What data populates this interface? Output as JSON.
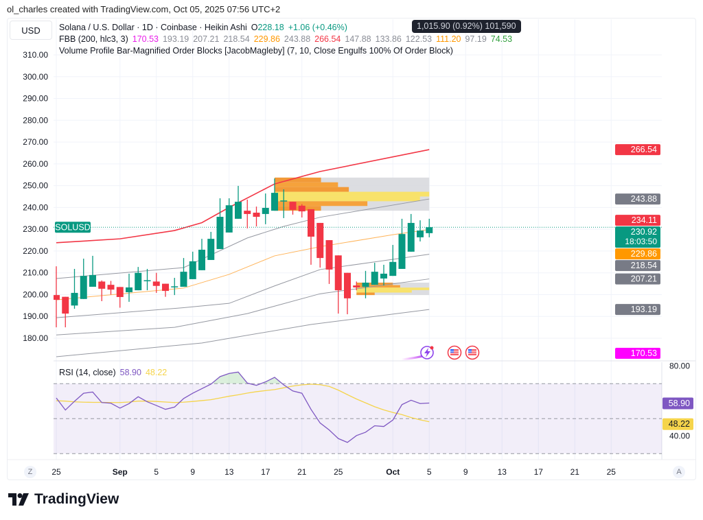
{
  "header": {
    "credit": "ol_charles created with TradingView.com, Oct 05, 2025 07:56 UTC+2"
  },
  "currency_button": "USD",
  "legend": {
    "symbol": "Solana / U.S. Dollar · 1D · Coinbase · Heikin Ashi",
    "open_label": "O",
    "open_value": "228.18",
    "change": "+1.06 (+0.46%)",
    "tooltip": "1,015.90 (0.92%) 101,590",
    "fbb_title": "FBB (200, hlc3, 3)",
    "fbb_values": [
      {
        "v": "170.53",
        "color": "#e91ee9"
      },
      {
        "v": "193.19",
        "color": "#8a8d96"
      },
      {
        "v": "207.21",
        "color": "#8a8d96"
      },
      {
        "v": "218.54",
        "color": "#8a8d96"
      },
      {
        "v": "229.86",
        "color": "#ff9800"
      },
      {
        "v": "243.88",
        "color": "#8a8d96"
      },
      {
        "v": "266.54",
        "color": "#f23645"
      },
      {
        "v": "147.88",
        "color": "#8a8d96"
      },
      {
        "v": "133.86",
        "color": "#8a8d96"
      },
      {
        "v": "122.53",
        "color": "#8a8d96"
      },
      {
        "v": "111.20",
        "color": "#ff9800"
      },
      {
        "v": "97.19",
        "color": "#8a8d96"
      },
      {
        "v": "74.53",
        "color": "#2e9e3a"
      }
    ],
    "vp_title": "Volume Profile Bar-Magnified Order Blocks [JacobMagleby] (7, 10, Close Engulfs 100% Of Order Block)"
  },
  "price_badges": [
    {
      "label": "266.54",
      "price": 266.54,
      "color": "#f23645"
    },
    {
      "label": "243.88",
      "price": 243.88,
      "color": "#787b86"
    },
    {
      "label": "234.11",
      "price": 234.11,
      "color": "#f23645"
    },
    {
      "label": "229.86",
      "price": 229.86,
      "color": "#ff9800"
    },
    {
      "label": "218.54",
      "price": 218.54,
      "color": "#787b86"
    },
    {
      "label": "207.21",
      "price": 207.21,
      "color": "#787b86"
    },
    {
      "label": "193.19",
      "price": 193.19,
      "color": "#787b86"
    },
    {
      "label": "170.53",
      "price": 170.53,
      "color": "#ff00ff"
    }
  ],
  "last_price": {
    "label": "230.92",
    "countdown": "18:03:50",
    "symbol": "SOLUSD",
    "price": 230.92,
    "color": "#089981"
  },
  "rsi": {
    "title": "RSI (14, close)",
    "value": "58.90",
    "ma_value": "48.22",
    "line_color": "#7e57c2",
    "ma_color": "#f5d44b",
    "axis_ticks": [
      "80.00",
      "40.00"
    ]
  },
  "buttons": {
    "zoom": "Z",
    "auto": "A"
  },
  "logo_text": "TradingView",
  "colors": {
    "up": "#089981",
    "down": "#f23645",
    "grid": "#f0f3fa"
  },
  "chart_data": {
    "type": "candlestick",
    "candle_style": "Heikin Ashi",
    "symbol": "SOLUSD",
    "ylim": [
      175,
      315
    ],
    "y_ticks": [
      "180.00",
      "190.00",
      "200.00",
      "210.00",
      "220.00",
      "230.00",
      "240.00",
      "250.00",
      "260.00",
      "270.00",
      "280.00",
      "290.00",
      "300.00",
      "310.00"
    ],
    "x_ticks": [
      {
        "label": "25",
        "date": "2025-08-25"
      },
      {
        "label": "Sep",
        "date": "2025-09-01"
      },
      {
        "label": "5",
        "date": "2025-09-05"
      },
      {
        "label": "9",
        "date": "2025-09-09"
      },
      {
        "label": "13",
        "date": "2025-09-13"
      },
      {
        "label": "17",
        "date": "2025-09-17"
      },
      {
        "label": "21",
        "date": "2025-09-21"
      },
      {
        "label": "25",
        "date": "2025-09-25"
      },
      {
        "label": "Oct",
        "date": "2025-10-01"
      },
      {
        "label": "5",
        "date": "2025-10-05"
      },
      {
        "label": "9",
        "date": "2025-10-09"
      },
      {
        "label": "13",
        "date": "2025-10-13"
      },
      {
        "label": "17",
        "date": "2025-10-17"
      },
      {
        "label": "21",
        "date": "2025-10-21"
      },
      {
        "label": "25",
        "date": "2025-10-25"
      }
    ],
    "start_date": "2025-08-25",
    "candles": [
      [
        "2025-08-25",
        199.8,
        213,
        185,
        197.6
      ],
      [
        "2025-08-26",
        199,
        199,
        185,
        191.3
      ],
      [
        "2025-08-27",
        195,
        211.8,
        193.5,
        200.8
      ],
      [
        "2025-08-28",
        198,
        216.5,
        198,
        208.6
      ],
      [
        "2025-08-29",
        203.6,
        217.8,
        203.6,
        209
      ],
      [
        "2025-08-30",
        206,
        206.5,
        197,
        202.7
      ],
      [
        "2025-08-31",
        204.5,
        206.3,
        200,
        202.3
      ],
      [
        "2025-09-01",
        203.5,
        203.5,
        194,
        198.9
      ],
      [
        "2025-09-02",
        201.1,
        209.6,
        196.7,
        203.3
      ],
      [
        "2025-09-03",
        202,
        212.7,
        202,
        210
      ],
      [
        "2025-09-04",
        206.2,
        211.8,
        202,
        206.6
      ],
      [
        "2025-09-05",
        206,
        210,
        200.8,
        204
      ],
      [
        "2025-09-06",
        205,
        205,
        199,
        201.7
      ],
      [
        "2025-09-07",
        203.4,
        207.7,
        199.8,
        203.8
      ],
      [
        "2025-09-08",
        203.6,
        216.8,
        203.6,
        210.5
      ],
      [
        "2025-09-09",
        207.1,
        219.7,
        207.1,
        215.3
      ],
      [
        "2025-09-10",
        211.2,
        225.6,
        211.2,
        220.6
      ],
      [
        "2025-09-11",
        215.9,
        228.8,
        215.9,
        225.6
      ],
      [
        "2025-09-12",
        220.9,
        244.2,
        220.9,
        235.7
      ],
      [
        "2025-09-13",
        228.5,
        244.2,
        228.5,
        241
      ],
      [
        "2025-09-14",
        234.8,
        249.9,
        234.8,
        242.6
      ],
      [
        "2025-09-15",
        238.5,
        243.6,
        230.4,
        237
      ],
      [
        "2025-09-16",
        237.6,
        240.4,
        231.3,
        235.7
      ],
      [
        "2025-09-17",
        237,
        246.4,
        232.3,
        239.8
      ],
      [
        "2025-09-18",
        238.5,
        253.3,
        238.5,
        246.7
      ],
      [
        "2025-09-19",
        242.8,
        248.3,
        235.1,
        243.2
      ],
      [
        "2025-09-20",
        242.6,
        242.6,
        236.7,
        238.9
      ],
      [
        "2025-09-21",
        240.8,
        241.5,
        235.4,
        238.2
      ],
      [
        "2025-09-22",
        239.2,
        239.2,
        213.7,
        226.6
      ],
      [
        "2025-09-23",
        232.9,
        232.9,
        212.4,
        216.8
      ],
      [
        "2025-09-24",
        225,
        225,
        204.9,
        211.5
      ],
      [
        "2025-09-25",
        218,
        218,
        191.3,
        202
      ],
      [
        "2025-09-26",
        210,
        210,
        191,
        198.3
      ],
      [
        "2025-09-27",
        204.2,
        206,
        202,
        203.3
      ],
      [
        "2025-09-28",
        203.6,
        210.9,
        198.3,
        205.5
      ],
      [
        "2025-09-29",
        204.5,
        214.6,
        204.5,
        210.5
      ],
      [
        "2025-09-30",
        207.4,
        213.7,
        204.2,
        209.6
      ],
      [
        "2025-10-01",
        208.6,
        222.8,
        208.6,
        215
      ],
      [
        "2025-10-02",
        211.8,
        234.8,
        211.8,
        227.8
      ],
      [
        "2025-10-03",
        219.7,
        237,
        219.7,
        232.9
      ],
      [
        "2025-10-04",
        226.3,
        234.1,
        224.4,
        229.4
      ],
      [
        "2025-10-05",
        228.2,
        234.8,
        226.3,
        230.92
      ]
    ],
    "bands": [
      {
        "name": "266.54",
        "color": "#f23645",
        "width": 1.6,
        "points": [
          [
            "2025-08-25",
            223.8
          ],
          [
            "2025-09-01",
            225.6
          ],
          [
            "2025-09-07",
            229.4
          ],
          [
            "2025-09-10",
            233
          ],
          [
            "2025-09-13",
            240
          ],
          [
            "2025-09-18",
            250.8
          ],
          [
            "2025-09-23",
            256.5
          ],
          [
            "2025-10-05",
            266.54
          ]
        ]
      },
      {
        "name": "243.88",
        "color": "#9598a1",
        "width": 1,
        "points": [
          [
            "2025-08-25",
            207.4
          ],
          [
            "2025-09-08",
            212.4
          ],
          [
            "2025-09-15",
            226
          ],
          [
            "2025-09-19",
            231.3
          ],
          [
            "2025-09-23",
            235.5
          ],
          [
            "2025-10-05",
            243.88
          ]
        ]
      },
      {
        "name": "229.86",
        "color": "#ffb45a",
        "width": 1,
        "points": [
          [
            "2025-08-25",
            197.6
          ],
          [
            "2025-09-08",
            203
          ],
          [
            "2025-09-13",
            209.3
          ],
          [
            "2025-09-18",
            217.8
          ],
          [
            "2025-09-23",
            222
          ],
          [
            "2025-10-01",
            227.5
          ],
          [
            "2025-10-05",
            229.86
          ]
        ]
      },
      {
        "name": "218.54",
        "color": "#9598a1",
        "width": 1,
        "points": [
          [
            "2025-08-25",
            189.4
          ],
          [
            "2025-09-08",
            194
          ],
          [
            "2025-09-13",
            196
          ],
          [
            "2025-09-18",
            204
          ],
          [
            "2025-09-23",
            211.5
          ],
          [
            "2025-10-05",
            218.54
          ]
        ]
      },
      {
        "name": "207.21",
        "color": "#9598a1",
        "width": 1,
        "points": [
          [
            "2025-08-25",
            181.5
          ],
          [
            "2025-09-07",
            185
          ],
          [
            "2025-09-15",
            191.3
          ],
          [
            "2025-09-23",
            200.4
          ],
          [
            "2025-10-05",
            207.21
          ]
        ]
      },
      {
        "name": "193.19",
        "color": "#9598a1",
        "width": 1,
        "points": [
          [
            "2025-08-25",
            171.5
          ],
          [
            "2025-09-10",
            177.8
          ],
          [
            "2025-09-22",
            186.3
          ],
          [
            "2025-10-05",
            193.19
          ]
        ]
      }
    ],
    "order_blocks": [
      {
        "from": "2025-09-18",
        "to": "2025-10-05",
        "top": 253.7,
        "bottom": 238.5,
        "profile": [
          0.3,
          0.41,
          0.48,
          1.0,
          0.94,
          0.6,
          0.3
        ]
      },
      {
        "from": "2025-09-27",
        "to": "2025-10-05",
        "top": 205.5,
        "bottom": 199.8,
        "profile": [
          0.5,
          0.6,
          1.0,
          0.76,
          0.25
        ]
      }
    ],
    "rsi": {
      "levels": [
        70,
        50,
        30
      ],
      "ylim": [
        25,
        85
      ],
      "values": [
        61.8,
        54.9,
        59.9,
        64.5,
        65.2,
        59.2,
        58.8,
        56,
        58.6,
        62.5,
        59.6,
        57.5,
        55.3,
        56.6,
        61.5,
        64.5,
        67.1,
        69.7,
        74,
        75.8,
        76.6,
        70.3,
        69,
        71,
        73.6,
        69.3,
        65.8,
        64.5,
        55.3,
        47.5,
        43.5,
        38.6,
        36.4,
        40.3,
        42.2,
        45.9,
        45.5,
        49.2,
        58,
        60.5,
        58.6,
        58.9
      ],
      "ma": [
        60.2,
        60,
        59.6,
        59.4,
        59.3,
        59.3,
        59.2,
        59.2,
        59.5,
        60,
        60,
        59.8,
        59.5,
        59.2,
        59.4,
        59.8,
        60.3,
        60.8,
        61.8,
        62.8,
        63.6,
        64.6,
        65.4,
        66,
        66.6,
        67.6,
        68.6,
        69.3,
        69.7,
        69.4,
        68.4,
        66.3,
        63.7,
        61.2,
        59,
        56.8,
        55,
        53.5,
        52.3,
        50.6,
        49.3,
        48.22
      ]
    }
  }
}
